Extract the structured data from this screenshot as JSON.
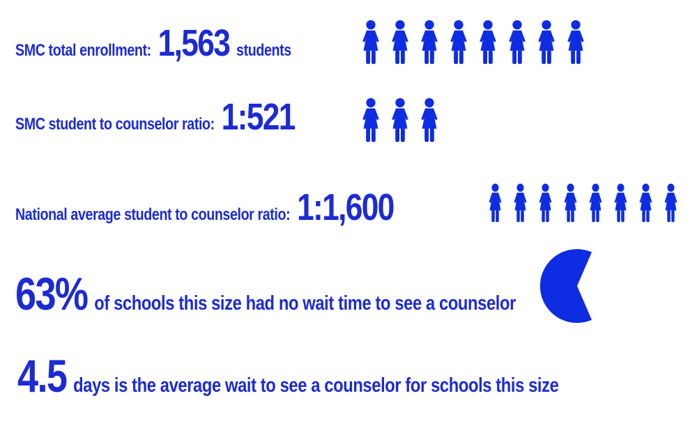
{
  "colors": {
    "text_blue": "#1c2bd2",
    "graphic_blue": "#0e2de2",
    "background": "#ffffff"
  },
  "rows": [
    {
      "label": "SMC total enrollment:",
      "value": "1,563",
      "suffix": "students",
      "icon_count": 8
    },
    {
      "label": "SMC student to counselor ratio:",
      "value": "1:521",
      "icon_count": 3
    },
    {
      "label": "National average student to counselor ratio:",
      "value": "1:1,600",
      "icon_count": 8
    },
    {
      "value": "63%",
      "suffix": "of schools this size had no wait time to see a counselor",
      "pie_percent": 63
    },
    {
      "value": "4.5",
      "suffix": "days is the average wait to see a counselor for schools this size"
    }
  ],
  "chart_data": [
    {
      "type": "pictogram",
      "title": "SMC total enrollment",
      "value": 1563,
      "unit": "students",
      "icon": "female-person",
      "icon_count": 8
    },
    {
      "type": "pictogram",
      "title": "SMC student to counselor ratio",
      "value": "1:521",
      "icon": "female-person",
      "icon_count": 3
    },
    {
      "type": "pictogram",
      "title": "National average student to counselor ratio",
      "value": "1:1,600",
      "icon": "female-person",
      "icon_count": 8
    },
    {
      "type": "pie",
      "title": "63% of schools this size had no wait time to see a counselor",
      "labels": [
        "No wait time",
        "Wait time"
      ],
      "values": [
        63,
        37
      ],
      "legend_position": "none",
      "gap_direction": "right"
    },
    {
      "type": "stat",
      "title": "Average wait to see a counselor for schools this size",
      "value": 4.5,
      "unit": "days"
    }
  ]
}
